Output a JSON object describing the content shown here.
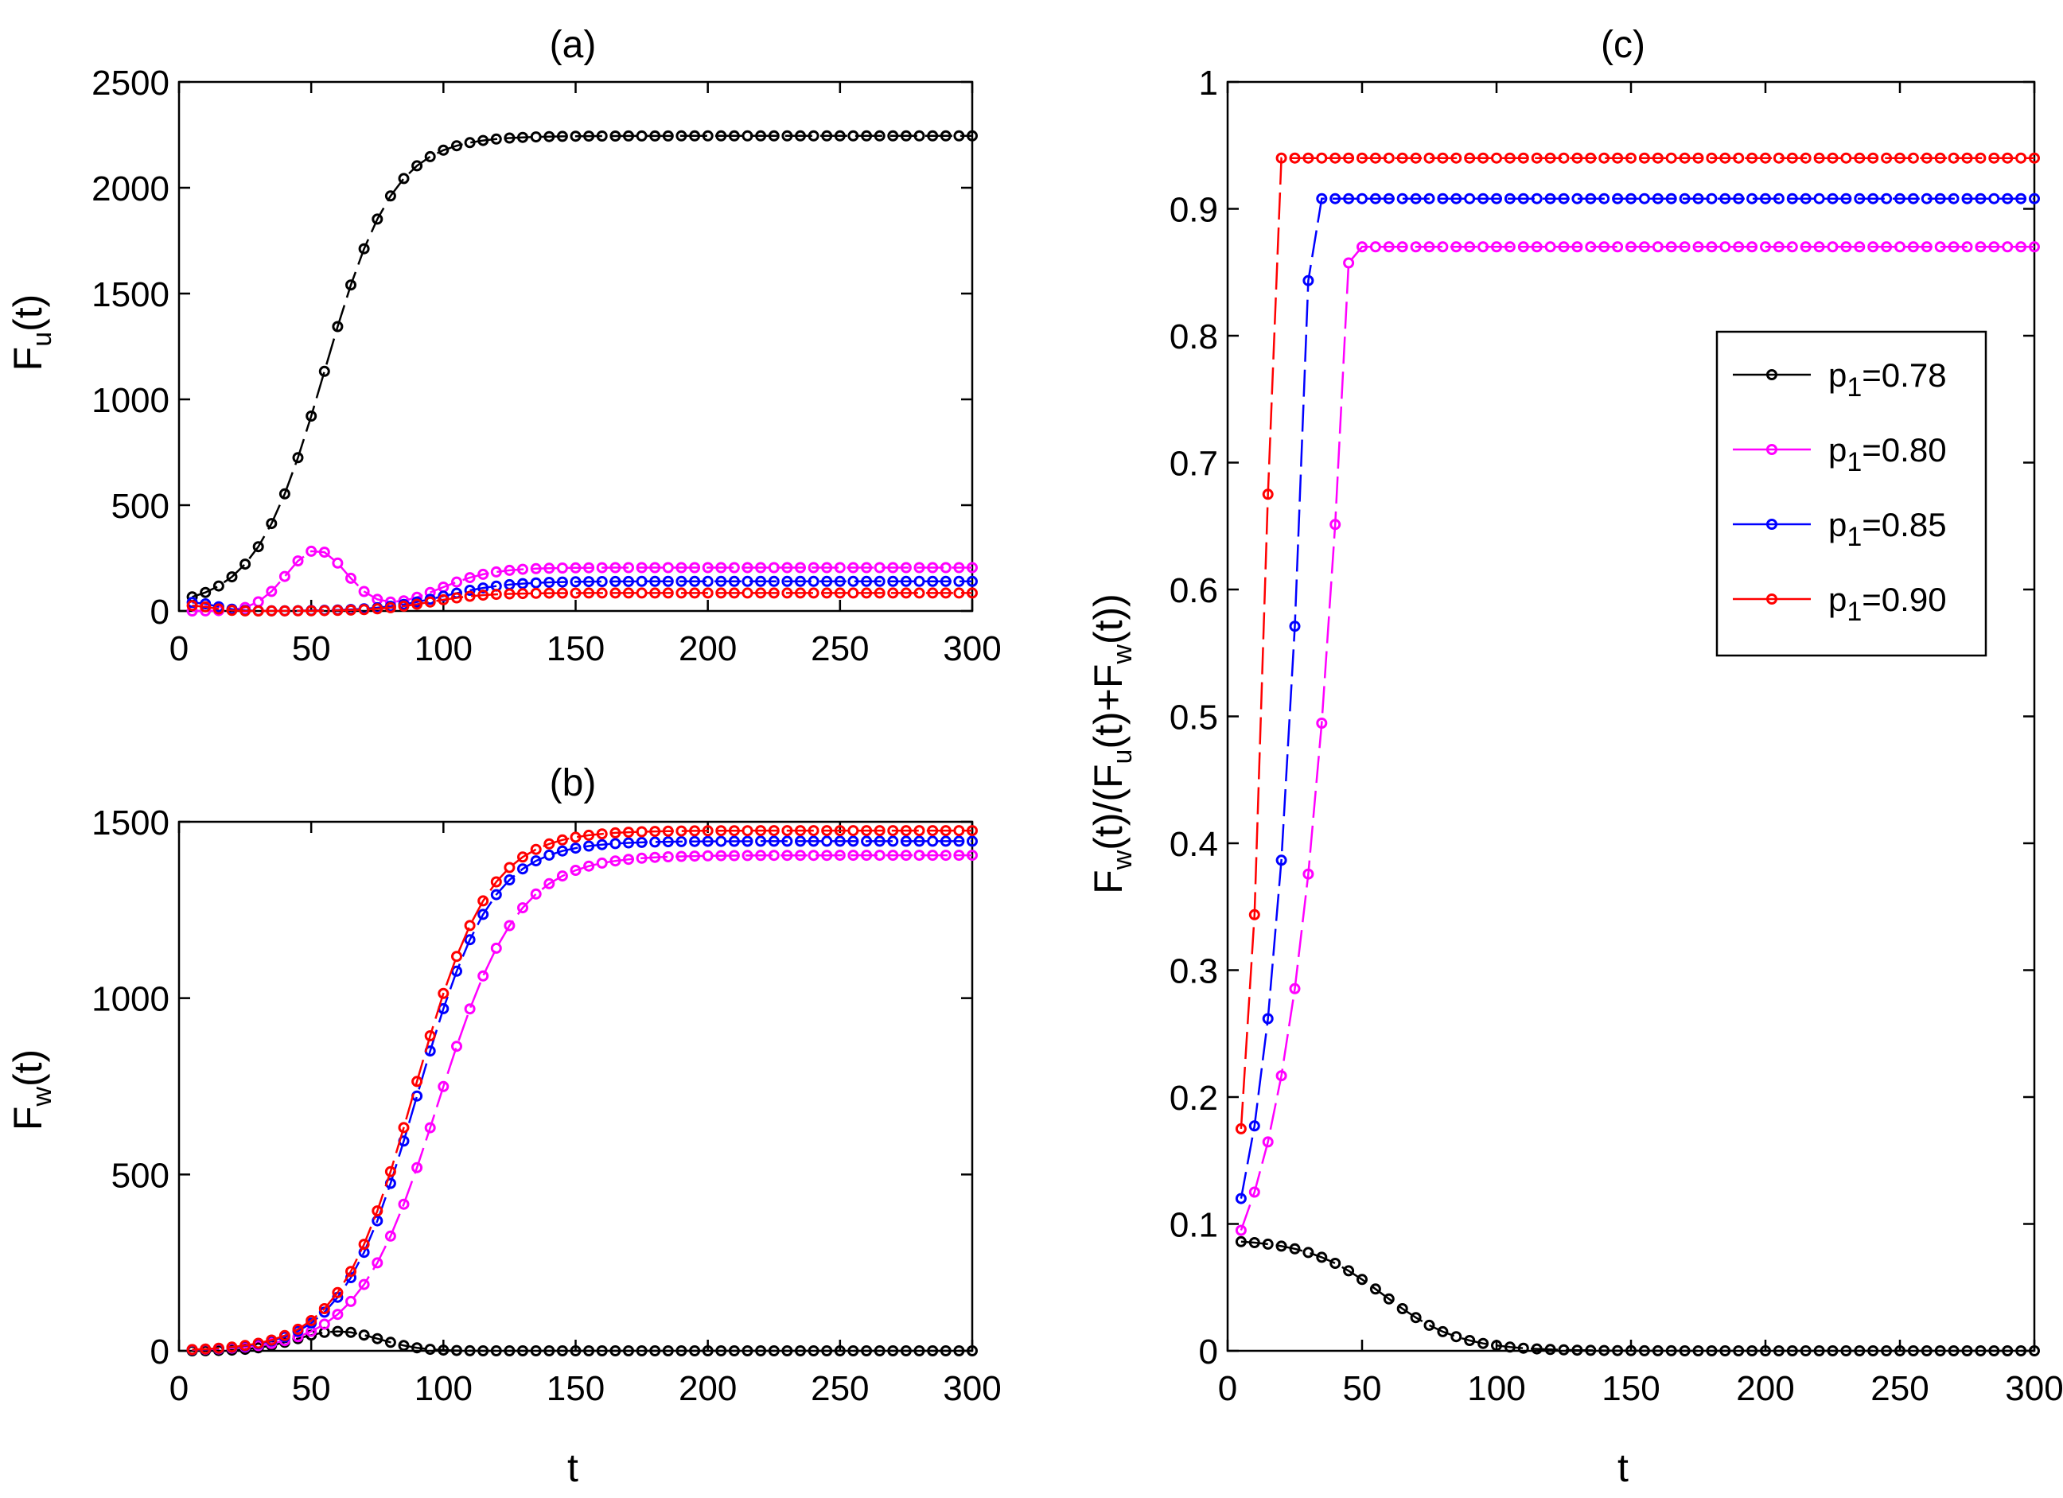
{
  "colors": {
    "p078": "#000000",
    "p080": "#ff00ff",
    "p085": "#0000ff",
    "p090": "#ff0000"
  },
  "legend": {
    "items": [
      {
        "prefix": "p",
        "sub": "1",
        "suffix": "=0.78",
        "color": "#000000"
      },
      {
        "prefix": "p",
        "sub": "1",
        "suffix": "=0.80",
        "color": "#ff00ff"
      },
      {
        "prefix": "p",
        "sub": "1",
        "suffix": "=0.85",
        "color": "#0000ff"
      },
      {
        "prefix": "p",
        "sub": "1",
        "suffix": "=0.90",
        "color": "#ff0000"
      }
    ]
  },
  "chart_data": [
    {
      "id": "a",
      "type": "line",
      "title": "(a)",
      "xlabel": "",
      "ylabel": {
        "main": "F",
        "sub": "u",
        "tail": "(t)"
      },
      "xlim": [
        0,
        300
      ],
      "ylim": [
        0,
        2500
      ],
      "xticks": [
        0,
        50,
        100,
        150,
        200,
        250,
        300
      ],
      "yticks": [
        0,
        500,
        1000,
        1500,
        2000,
        2500
      ],
      "ytick_labels": [
        "0",
        "500",
        "1000",
        "1500",
        "2000",
        "2500"
      ],
      "series": [
        {
          "name": "p1=0.78",
          "color": "#000000",
          "model": "logistic",
          "base": 20,
          "amp": 2225,
          "mid": 55,
          "scale": 13
        },
        {
          "name": "p1=0.80",
          "color": "#ff00ff",
          "model": "hump",
          "base": 0,
          "hump_amp": 285,
          "hump_mid": 52,
          "hump_w": 16,
          "amp": 205,
          "mid": 98,
          "scale": 10
        },
        {
          "name": "p1=0.85",
          "color": "#0000ff",
          "model": "hump",
          "base": 0,
          "hump_amp": 40,
          "hump_mid": 5,
          "hump_w": 12,
          "amp": 140,
          "mid": 100,
          "scale": 12
        },
        {
          "name": "p1=0.90",
          "color": "#ff0000",
          "model": "hump",
          "base": 0,
          "hump_amp": 25,
          "hump_mid": 5,
          "hump_w": 10,
          "amp": 85,
          "mid": 95,
          "scale": 10
        }
      ]
    },
    {
      "id": "b",
      "type": "line",
      "title": "(b)",
      "xlabel": "t",
      "ylabel": {
        "main": "F",
        "sub": "w",
        "tail": "(t)"
      },
      "xlim": [
        0,
        300
      ],
      "ylim": [
        0,
        1500
      ],
      "xticks": [
        0,
        50,
        100,
        150,
        200,
        250,
        300
      ],
      "yticks": [
        0,
        500,
        1000,
        1500
      ],
      "ytick_labels": [
        "0",
        "500",
        "1000",
        "1500"
      ],
      "series": [
        {
          "name": "p1=0.78",
          "color": "#000000",
          "model": "hump",
          "base": 0,
          "hump_amp": 55,
          "hump_mid": 60,
          "hump_w": 22,
          "amp": 0,
          "mid": 100,
          "scale": 10
        },
        {
          "name": "p1=0.80",
          "color": "#ff00ff",
          "model": "logistic",
          "base": 0,
          "amp": 1405,
          "mid": 98,
          "scale": 15
        },
        {
          "name": "p1=0.85",
          "color": "#0000ff",
          "model": "logistic",
          "base": 0,
          "amp": 1445,
          "mid": 90,
          "scale": 14
        },
        {
          "name": "p1=0.90",
          "color": "#ff0000",
          "model": "logistic",
          "base": 0,
          "amp": 1475,
          "mid": 89,
          "scale": 14
        }
      ]
    },
    {
      "id": "c",
      "type": "line",
      "title": "(c)",
      "xlabel": "t",
      "ylabel_text": "F_w(t)/(F_u(t)+F_w(t))",
      "xlim": [
        0,
        300
      ],
      "ylim": [
        0,
        1
      ],
      "xticks": [
        0,
        50,
        100,
        150,
        200,
        250,
        300
      ],
      "yticks": [
        0,
        0.1,
        0.2,
        0.3,
        0.4,
        0.5,
        0.6,
        0.7,
        0.8,
        0.9,
        1
      ],
      "ytick_labels": [
        "0",
        "0.1",
        "0.2",
        "0.3",
        "0.4",
        "0.5",
        "0.6",
        "0.7",
        "0.8",
        "0.9",
        "1"
      ],
      "legend": "top-right",
      "series": [
        {
          "name": "p1=0.78",
          "color": "#000000",
          "model": "decay",
          "base": 0,
          "amp": 0.088,
          "mid": 58,
          "scale": 14
        },
        {
          "name": "p1=0.80",
          "color": "#ff00ff",
          "model": "exp_sat",
          "start": 0.095,
          "plateau": 0.87,
          "rate": 0.055,
          "t_sat": 90
        },
        {
          "name": "p1=0.85",
          "color": "#0000ff",
          "model": "exp_sat",
          "start": 0.12,
          "plateau": 0.908,
          "rate": 0.078,
          "t_sat": 42
        },
        {
          "name": "p1=0.90",
          "color": "#ff0000",
          "model": "exp_sat",
          "start": 0.175,
          "plateau": 0.94,
          "rate": 0.135,
          "t_sat": 27
        }
      ]
    }
  ],
  "ylabel_c": {
    "parts": [
      {
        "t": "F",
        "sub": false
      },
      {
        "t": "w",
        "sub": true
      },
      {
        "t": "(t)/(F",
        "sub": false
      },
      {
        "t": "u",
        "sub": true
      },
      {
        "t": "(t)+F",
        "sub": false
      },
      {
        "t": "w",
        "sub": true
      },
      {
        "t": "(t))",
        "sub": false
      }
    ]
  }
}
